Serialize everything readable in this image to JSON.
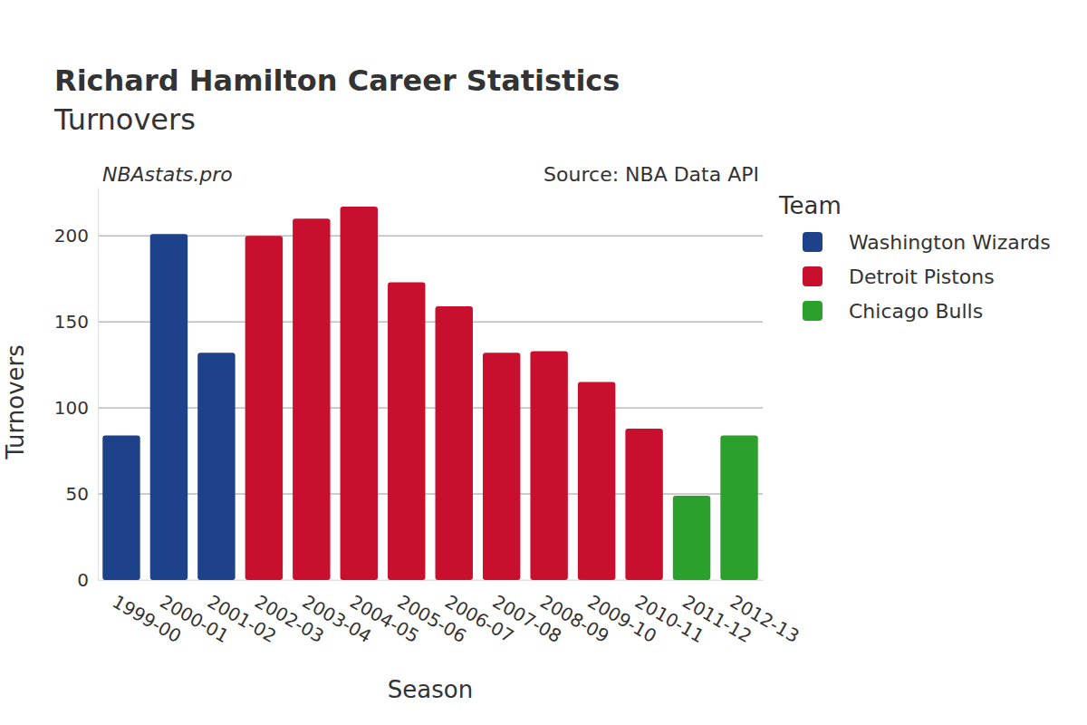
{
  "chart_data": {
    "type": "bar",
    "title": "Richard Hamilton Career Statistics",
    "subtitle": "Turnovers",
    "annotations": [
      "NBAstats.pro",
      "Source: NBA Data API"
    ],
    "x_label": "Season",
    "y_label": "Turnovers",
    "legend_title": "Team",
    "categories": [
      "1999-00",
      "2000-01",
      "2001-02",
      "2002-03",
      "2003-04",
      "2004-05",
      "2005-06",
      "2006-07",
      "2007-08",
      "2008-09",
      "2009-10",
      "2010-11",
      "2011-12",
      "2012-13"
    ],
    "series": [
      {
        "name": "Washington Wizards",
        "color": "#1d428a",
        "values": [
          84,
          201,
          132,
          null,
          null,
          null,
          null,
          null,
          null,
          null,
          null,
          null,
          null,
          null
        ]
      },
      {
        "name": "Detroit Pistons",
        "color": "#c8102e",
        "values": [
          null,
          null,
          null,
          200,
          210,
          217,
          173,
          159,
          132,
          133,
          115,
          88,
          null,
          null
        ]
      },
      {
        "name": "Chicago Bulls",
        "color": "#2ca02c",
        "values": [
          null,
          null,
          null,
          null,
          null,
          null,
          null,
          null,
          null,
          null,
          null,
          null,
          49,
          84
        ]
      }
    ],
    "ylim": [
      0,
      228
    ],
    "yticks": [
      0,
      50,
      100,
      150,
      200
    ],
    "grid": true,
    "legend": "right"
  }
}
